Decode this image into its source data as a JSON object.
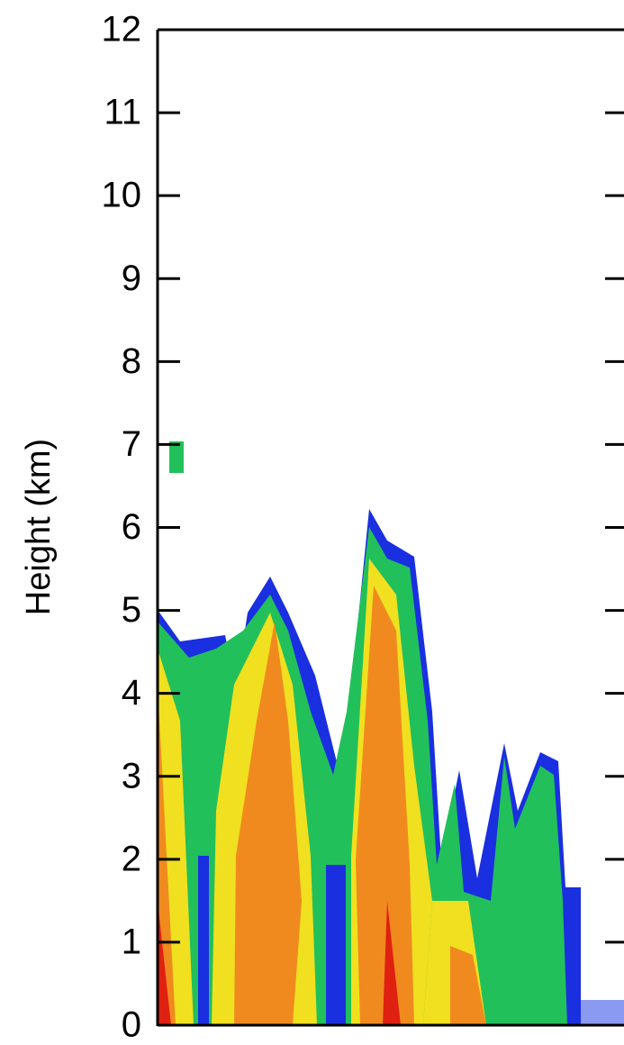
{
  "chart_data": {
    "type": "heatmap",
    "y_label": "Height (km)",
    "ylim": [
      0,
      12
    ],
    "yticks": [
      0,
      1,
      2,
      3,
      4,
      5,
      6,
      7,
      8,
      9,
      10,
      11,
      12
    ]
  }
}
